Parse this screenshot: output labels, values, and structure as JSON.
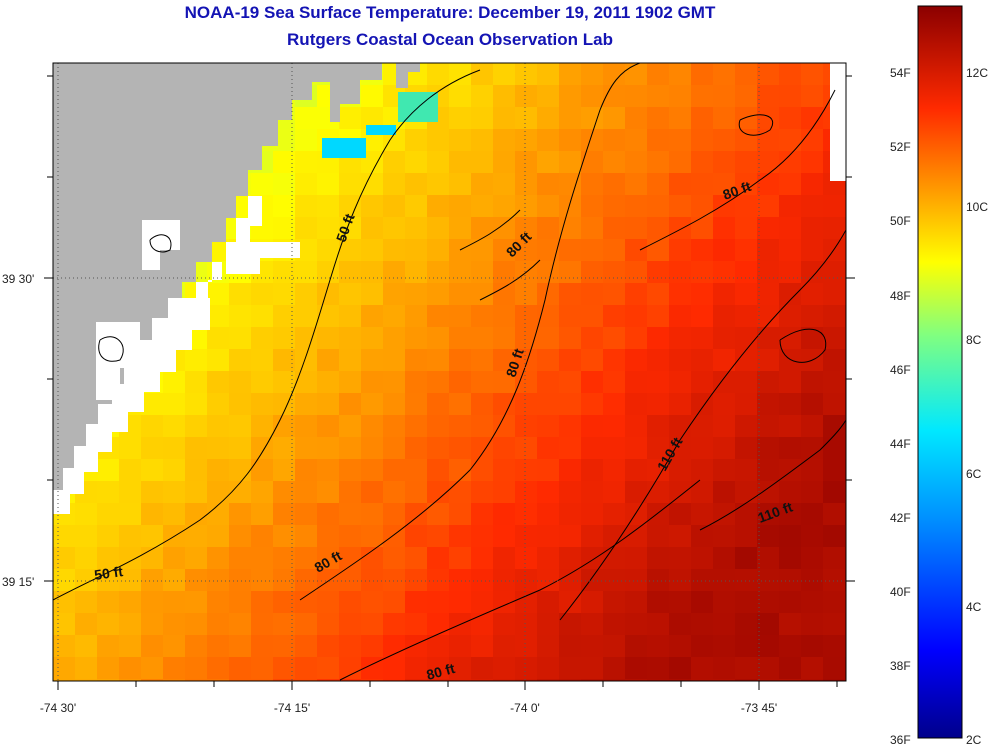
{
  "header": {
    "title": "NOAA-19 Sea Surface Temperature:  December 19, 2011 1902 GMT",
    "subtitle": "Rutgers Coastal Ocean Observation Lab"
  },
  "axes": {
    "x_ticks": [
      "-74 30'",
      "-74 15'",
      "-74 0'",
      "-73 45'"
    ],
    "y_ticks": [
      "39 30'",
      "39 15'"
    ]
  },
  "contours": {
    "labels": [
      "50 ft",
      "50 ft",
      "80 ft",
      "80 ft",
      "80 ft",
      "80 ft",
      "80 ft",
      "110 ft",
      "110 ft"
    ]
  },
  "colorbar": {
    "fahrenheit": [
      "54F",
      "52F",
      "50F",
      "48F",
      "46F",
      "44F",
      "42F",
      "40F",
      "38F",
      "36F"
    ],
    "celsius": [
      "12C",
      "10C",
      "8C",
      "6C",
      "4C",
      "2C"
    ],
    "range_c": [
      2,
      13
    ]
  },
  "colors": {
    "title": "#1414b4",
    "land": "#b4b4b4",
    "cloud_mask": "#ffffff"
  }
}
